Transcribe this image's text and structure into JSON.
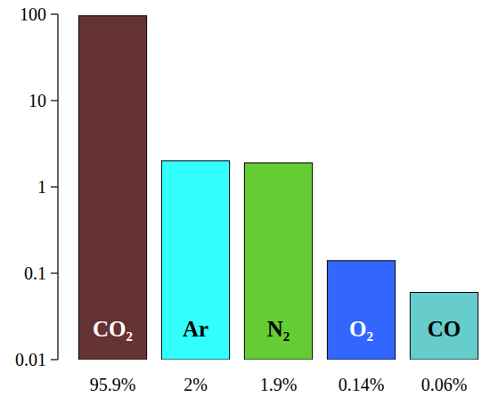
{
  "chart_data": {
    "type": "bar",
    "categories": [
      "CO₂",
      "Ar",
      "N₂",
      "O₂",
      "CO"
    ],
    "values": [
      95.9,
      2,
      1.9,
      0.14,
      0.06
    ],
    "value_labels": [
      "95.9%",
      "2%",
      "1.9%",
      "0.14%",
      "0.06%"
    ],
    "data_labels": true,
    "colors": [
      "#663333",
      "#33ffff",
      "#66cc33",
      "#3366ff",
      "#66cccc"
    ],
    "log": "y",
    "ylim": [
      0.01,
      100
    ],
    "yticks": [
      0.01,
      0.1,
      1,
      10,
      100
    ],
    "grid": false
  }
}
